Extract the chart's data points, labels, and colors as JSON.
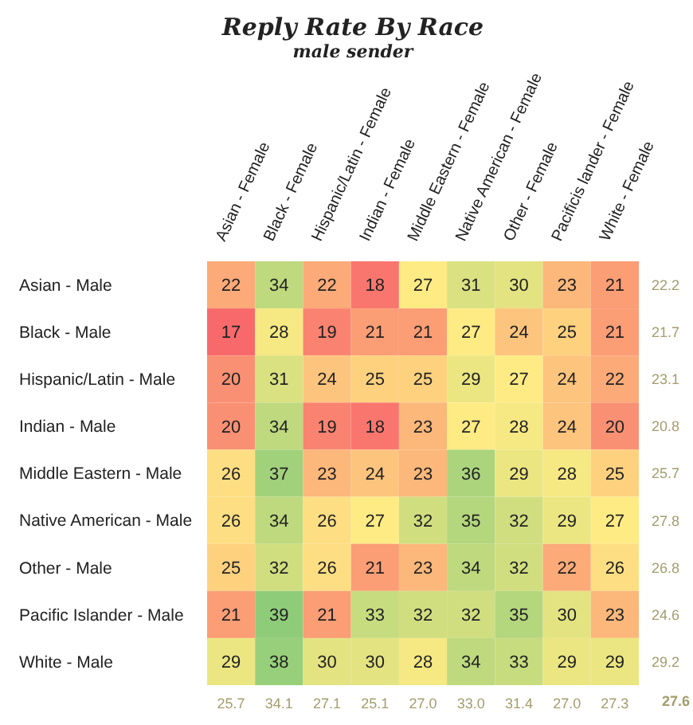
{
  "chart_data": {
    "type": "heatmap",
    "title": "Reply Rate By Race",
    "subtitle": "male sender",
    "categories": [
      "Asian - Female",
      "Black - Female",
      "Hispanic/Latin - Female",
      "Indian - Female",
      "Middle Eastern - Female",
      "Native American - Female",
      "Other - Female",
      "Pacificis lander - Female",
      "White - Female"
    ],
    "y_categories": [
      "Asian - Male",
      "Black - Male",
      "Hispanic/Latin - Male",
      "Indian - Male",
      "Middle Eastern - Male",
      "Native American - Male",
      "Other - Male",
      "Pacific Islander - Male",
      "White - Male"
    ],
    "y2_categories": [
      "22.2",
      "21.7",
      "23.1",
      "20.8",
      "25.7",
      "27.8",
      "26.8",
      "24.6",
      "29.2"
    ],
    "cells": [
      [
        22,
        34,
        22,
        18,
        27,
        31,
        30,
        23,
        21
      ],
      [
        17,
        28,
        19,
        21,
        21,
        27,
        24,
        25,
        21
      ],
      [
        20,
        31,
        24,
        25,
        25,
        29,
        27,
        24,
        22
      ],
      [
        20,
        34,
        19,
        18,
        23,
        27,
        28,
        24,
        20
      ],
      [
        26,
        37,
        23,
        24,
        23,
        36,
        29,
        28,
        25
      ],
      [
        26,
        34,
        26,
        27,
        32,
        35,
        32,
        29,
        27
      ],
      [
        25,
        32,
        26,
        21,
        23,
        34,
        32,
        22,
        26
      ],
      [
        21,
        39,
        21,
        33,
        32,
        32,
        35,
        30,
        23
      ],
      [
        29,
        38,
        30,
        30,
        28,
        34,
        33,
        29,
        29
      ]
    ],
    "colors": [
      "#f8696b",
      "#ffeb84",
      "#8fcc7a"
    ],
    "data_labels": true,
    "annotations": [
      "25.7",
      "34.1",
      "27.1",
      "25.1",
      "27.0",
      "33.0",
      "31.4",
      "27.0",
      "27.3",
      "27.6"
    ]
  }
}
